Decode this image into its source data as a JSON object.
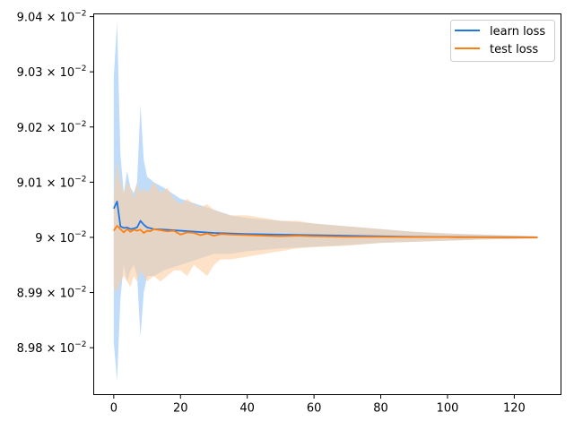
{
  "chart_data": {
    "type": "line",
    "title": "",
    "xlabel": "",
    "ylabel": "",
    "xlim": [
      -6,
      134
    ],
    "ylim": [
      0.089715,
      0.090405
    ],
    "grid": false,
    "legend": {
      "placement": "top-right"
    },
    "x_ticks": [
      {
        "value": 0,
        "label": "0"
      },
      {
        "value": 20,
        "label": "20"
      },
      {
        "value": 40,
        "label": "40"
      },
      {
        "value": 60,
        "label": "60"
      },
      {
        "value": 80,
        "label": "80"
      },
      {
        "value": 100,
        "label": "100"
      },
      {
        "value": 120,
        "label": "120"
      }
    ],
    "y_ticks": [
      {
        "value": 0.0898,
        "mantissa": "8.98",
        "exp": "−2"
      },
      {
        "value": 0.0899,
        "mantissa": "8.99",
        "exp": "−2"
      },
      {
        "value": 0.09,
        "mantissa": "9",
        "exp": "−2"
      },
      {
        "value": 0.0901,
        "mantissa": "9.01",
        "exp": "−2"
      },
      {
        "value": 0.0902,
        "mantissa": "9.02",
        "exp": "−2"
      },
      {
        "value": 0.0903,
        "mantissa": "9.03",
        "exp": "−2"
      },
      {
        "value": 0.0904,
        "mantissa": "9.04",
        "exp": "−2"
      }
    ],
    "series": [
      {
        "name": "learn loss",
        "color": "#1f77e4",
        "band_color": "#a9d0f8",
        "mean": [
          [
            0,
            0.090052
          ],
          [
            1,
            0.090065
          ],
          [
            2,
            0.09002
          ],
          [
            3,
            0.090017
          ],
          [
            4,
            0.090018
          ],
          [
            5,
            0.090015
          ],
          [
            6,
            0.090016
          ],
          [
            7,
            0.090018
          ],
          [
            8,
            0.09003
          ],
          [
            9,
            0.090023
          ],
          [
            10,
            0.090018
          ],
          [
            12,
            0.090015
          ],
          [
            15,
            0.090014
          ],
          [
            20,
            0.090012
          ],
          [
            25,
            0.09001
          ],
          [
            30,
            0.090008
          ],
          [
            35,
            0.090007
          ],
          [
            40,
            0.090006
          ],
          [
            50,
            0.090005
          ],
          [
            60,
            0.090004
          ],
          [
            70,
            0.090003
          ],
          [
            80,
            0.090002
          ],
          [
            90,
            0.090001
          ],
          [
            100,
            0.0900005
          ],
          [
            110,
            0.0900003
          ],
          [
            120,
            0.0900002
          ],
          [
            127,
            0.0900001
          ]
        ],
        "band_upper": [
          [
            0,
            0.09029
          ],
          [
            1,
            0.09039
          ],
          [
            2,
            0.09015
          ],
          [
            3,
            0.09008
          ],
          [
            4,
            0.09012
          ],
          [
            5,
            0.09009
          ],
          [
            6,
            0.09008
          ],
          [
            7,
            0.0901
          ],
          [
            8,
            0.09024
          ],
          [
            9,
            0.09014
          ],
          [
            10,
            0.09011
          ],
          [
            12,
            0.0901
          ],
          [
            15,
            0.09009
          ],
          [
            20,
            0.09007
          ],
          [
            25,
            0.09006
          ],
          [
            30,
            0.09005
          ],
          [
            35,
            0.09004
          ],
          [
            40,
            0.090035
          ],
          [
            50,
            0.09003
          ],
          [
            60,
            0.090025
          ],
          [
            70,
            0.09002
          ],
          [
            80,
            0.090015
          ],
          [
            90,
            0.09001
          ],
          [
            100,
            0.090007
          ],
          [
            110,
            0.090005
          ],
          [
            120,
            0.090003
          ],
          [
            127,
            0.090002
          ]
        ],
        "band_lower": [
          [
            0,
            0.08981
          ],
          [
            1,
            0.08974
          ],
          [
            2,
            0.08989
          ],
          [
            3,
            0.08995
          ],
          [
            4,
            0.08992
          ],
          [
            5,
            0.08994
          ],
          [
            6,
            0.08995
          ],
          [
            7,
            0.08993
          ],
          [
            8,
            0.08982
          ],
          [
            9,
            0.0899
          ],
          [
            10,
            0.08993
          ],
          [
            12,
            0.08993
          ],
          [
            15,
            0.08994
          ],
          [
            20,
            0.08995
          ],
          [
            25,
            0.08996
          ],
          [
            30,
            0.08997
          ],
          [
            35,
            0.08997
          ],
          [
            40,
            0.089975
          ],
          [
            50,
            0.08998
          ],
          [
            60,
            0.089983
          ],
          [
            70,
            0.089986
          ],
          [
            80,
            0.08999
          ],
          [
            90,
            0.089992
          ],
          [
            100,
            0.089994
          ],
          [
            110,
            0.089996
          ],
          [
            120,
            0.089997
          ],
          [
            127,
            0.089998
          ]
        ]
      },
      {
        "name": "test loss",
        "color": "#ff7f0e",
        "band_color": "#fdcfa2",
        "mean": [
          [
            0,
            0.090012
          ],
          [
            1,
            0.090021
          ],
          [
            2,
            0.090015
          ],
          [
            3,
            0.090009
          ],
          [
            4,
            0.090015
          ],
          [
            5,
            0.09001
          ],
          [
            6,
            0.090014
          ],
          [
            7,
            0.090012
          ],
          [
            8,
            0.090014
          ],
          [
            9,
            0.090008
          ],
          [
            10,
            0.090012
          ],
          [
            11,
            0.090011
          ],
          [
            12,
            0.090015
          ],
          [
            14,
            0.090013
          ],
          [
            16,
            0.090011
          ],
          [
            18,
            0.090012
          ],
          [
            20,
            0.090005
          ],
          [
            22,
            0.090009
          ],
          [
            24,
            0.090008
          ],
          [
            26,
            0.090004
          ],
          [
            28,
            0.090007
          ],
          [
            30,
            0.090003
          ],
          [
            32,
            0.090006
          ],
          [
            35,
            0.090005
          ],
          [
            40,
            0.090004
          ],
          [
            45,
            0.090003
          ],
          [
            50,
            0.090002
          ],
          [
            55,
            0.090003
          ],
          [
            60,
            0.090002
          ],
          [
            70,
            0.090001
          ],
          [
            80,
            0.090001
          ],
          [
            90,
            0.0900005
          ],
          [
            100,
            0.0900005
          ],
          [
            110,
            0.0900003
          ],
          [
            120,
            0.0900002
          ],
          [
            127,
            0.0900001
          ]
        ],
        "band_upper": [
          [
            0,
            0.09007
          ],
          [
            1,
            0.09014
          ],
          [
            2,
            0.0901
          ],
          [
            3,
            0.09008
          ],
          [
            4,
            0.0901
          ],
          [
            5,
            0.09009
          ],
          [
            6,
            0.09007
          ],
          [
            7,
            0.0901
          ],
          [
            8,
            0.09008
          ],
          [
            9,
            0.09009
          ],
          [
            10,
            0.09008
          ],
          [
            12,
            0.0901
          ],
          [
            14,
            0.09008
          ],
          [
            16,
            0.09009
          ],
          [
            18,
            0.09007
          ],
          [
            20,
            0.09006
          ],
          [
            22,
            0.09007
          ],
          [
            24,
            0.09006
          ],
          [
            26,
            0.090055
          ],
          [
            28,
            0.09006
          ],
          [
            30,
            0.09005
          ],
          [
            32,
            0.090045
          ],
          [
            35,
            0.09004
          ],
          [
            40,
            0.09004
          ],
          [
            45,
            0.090035
          ],
          [
            50,
            0.09003
          ],
          [
            55,
            0.09003
          ],
          [
            60,
            0.090025
          ],
          [
            70,
            0.09002
          ],
          [
            80,
            0.090015
          ],
          [
            90,
            0.09001
          ],
          [
            100,
            0.090007
          ],
          [
            110,
            0.090005
          ],
          [
            120,
            0.090003
          ],
          [
            127,
            0.090002
          ]
        ],
        "band_lower": [
          [
            0,
            0.08991
          ],
          [
            1,
            0.0899
          ],
          [
            2,
            0.08992
          ],
          [
            3,
            0.08993
          ],
          [
            4,
            0.08992
          ],
          [
            5,
            0.08991
          ],
          [
            6,
            0.08993
          ],
          [
            7,
            0.08992
          ],
          [
            8,
            0.08994
          ],
          [
            9,
            0.08993
          ],
          [
            10,
            0.08992
          ],
          [
            12,
            0.08993
          ],
          [
            14,
            0.08992
          ],
          [
            16,
            0.08993
          ],
          [
            18,
            0.08994
          ],
          [
            20,
            0.08994
          ],
          [
            22,
            0.08993
          ],
          [
            24,
            0.08995
          ],
          [
            26,
            0.08994
          ],
          [
            28,
            0.08993
          ],
          [
            30,
            0.08995
          ],
          [
            32,
            0.08996
          ],
          [
            35,
            0.08996
          ],
          [
            40,
            0.089965
          ],
          [
            45,
            0.08997
          ],
          [
            50,
            0.089975
          ],
          [
            55,
            0.08998
          ],
          [
            60,
            0.089982
          ],
          [
            70,
            0.089985
          ],
          [
            80,
            0.08999
          ],
          [
            90,
            0.089992
          ],
          [
            100,
            0.089994
          ],
          [
            110,
            0.089996
          ],
          [
            120,
            0.089997
          ],
          [
            127,
            0.089998
          ]
        ]
      }
    ]
  }
}
